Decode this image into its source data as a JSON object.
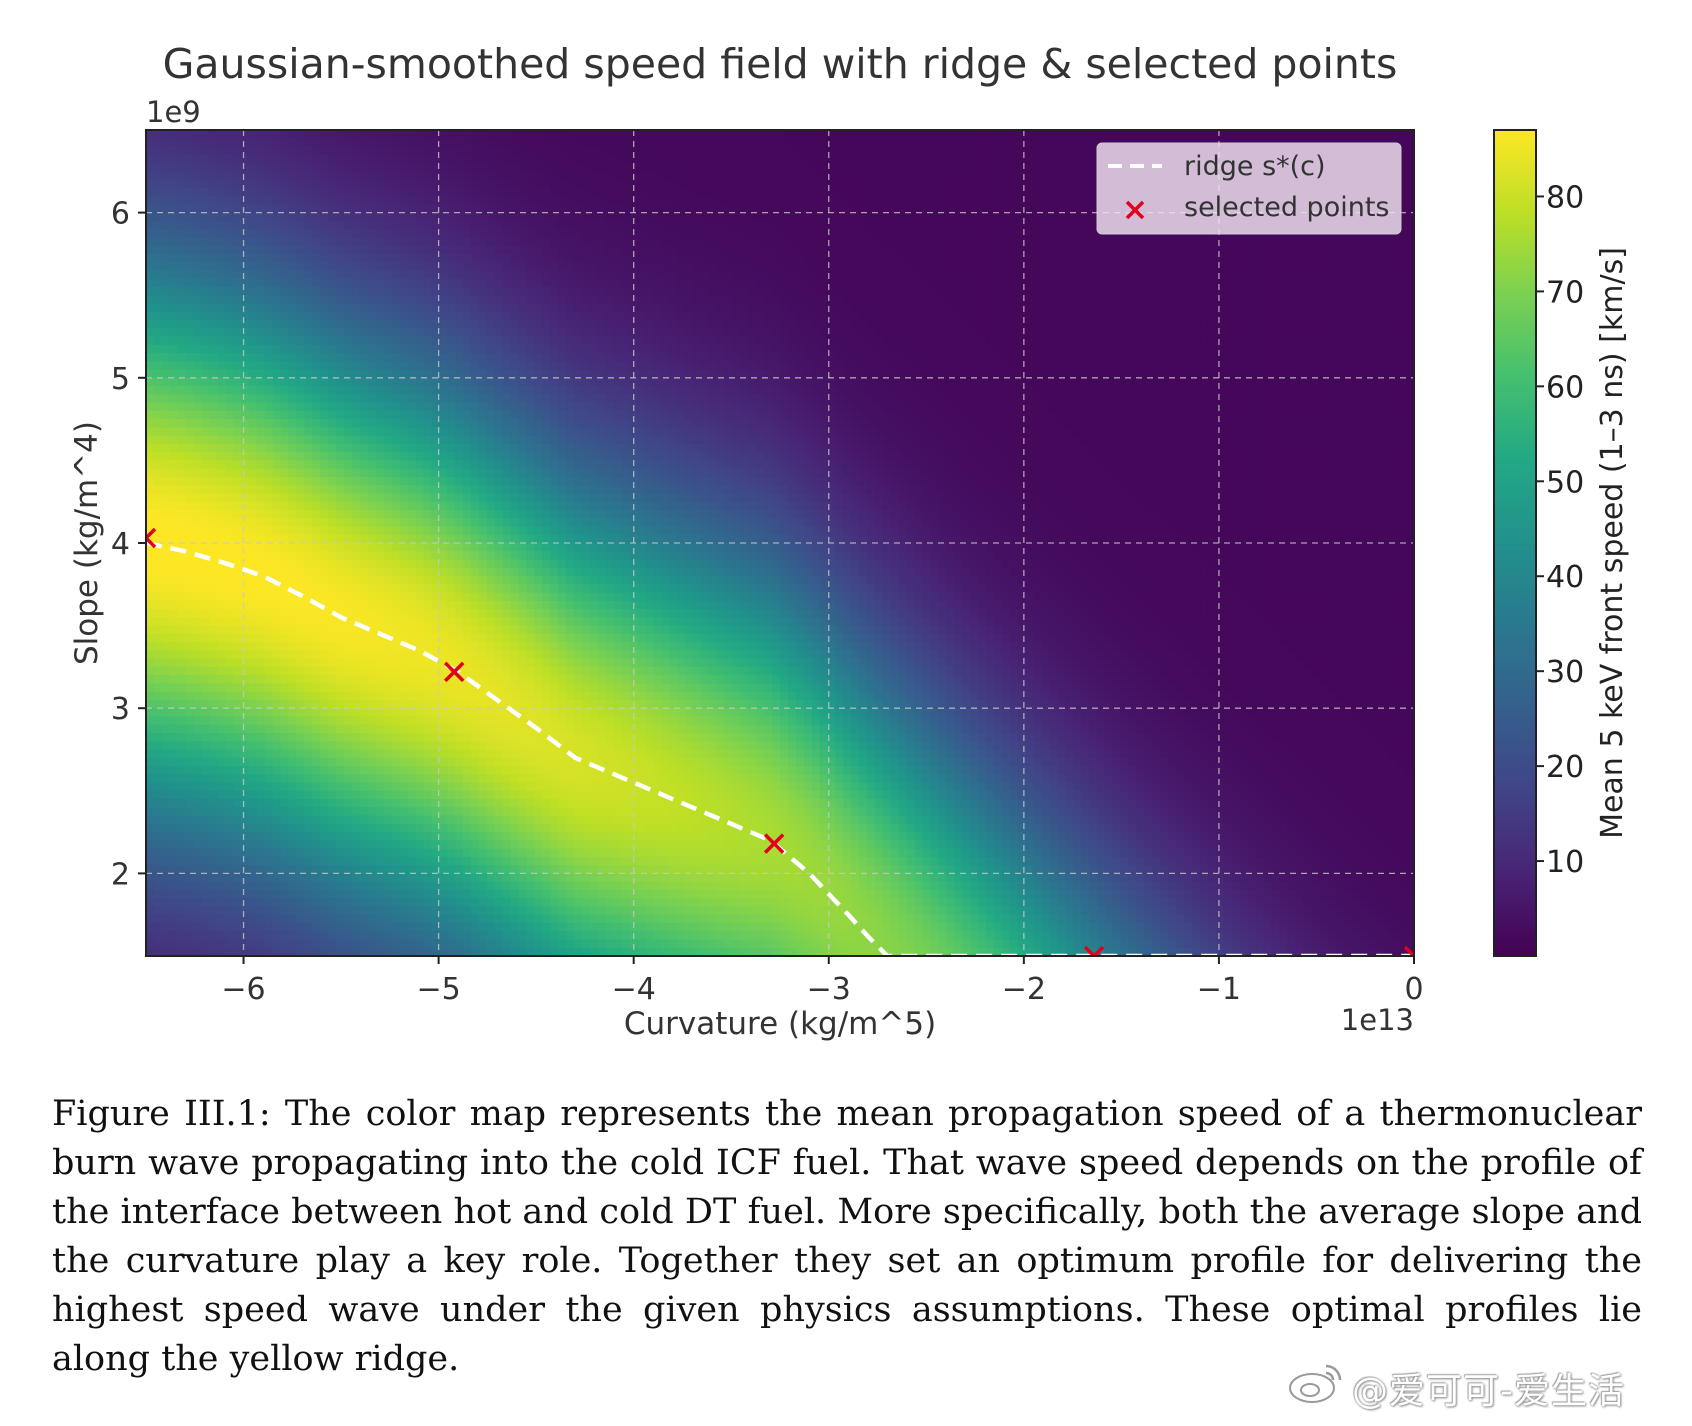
{
  "chart_data": {
    "type": "heatmap",
    "title": "Gaussian-smoothed speed field with ridge & selected points",
    "xlabel": "Curvature (kg/m^5)",
    "ylabel": "Slope (kg/m^4)",
    "x_offset_label": "1e13",
    "y_offset_label": "1e9",
    "xlim": [
      -6.5,
      0
    ],
    "ylim": [
      1.5,
      6.5
    ],
    "x_ticks": [
      -6,
      -5,
      -4,
      -3,
      -2,
      -1,
      0
    ],
    "x_tick_labels": [
      "−6",
      "−5",
      "−4",
      "−3",
      "−2",
      "−1",
      "0"
    ],
    "y_ticks": [
      2,
      3,
      4,
      5,
      6
    ],
    "y_tick_labels": [
      "2",
      "3",
      "4",
      "5",
      "6"
    ],
    "grid": true,
    "colormap": "viridis",
    "colorbar": {
      "label": "Mean 5 keV front speed (1–3 ns) [km/s]",
      "range": [
        0,
        87
      ],
      "ticks": [
        10,
        20,
        30,
        40,
        50,
        60,
        70,
        80
      ],
      "tick_labels": [
        "10",
        "20",
        "30",
        "40",
        "50",
        "60",
        "70",
        "80"
      ]
    },
    "legend": {
      "placement": "top-right",
      "entries": [
        "ridge s*(c)",
        "selected points"
      ]
    },
    "series": [
      {
        "name": "ridge s*(c)",
        "style": "dashed-line",
        "color": "#ffffff",
        "x": [
          -6.5,
          -6.3,
          -6.1,
          -5.9,
          -5.7,
          -5.5,
          -5.3,
          -5.1,
          -4.9,
          -4.7,
          -4.5,
          -4.3,
          -4.1,
          -3.9,
          -3.7,
          -3.5,
          -3.3,
          -3.1,
          -2.9,
          -2.8,
          -2.7,
          -2.5,
          -2.0,
          -1.5,
          -1.0,
          -0.5,
          0.0
        ],
        "y": [
          4.0,
          3.95,
          3.88,
          3.8,
          3.68,
          3.55,
          3.45,
          3.35,
          3.22,
          3.05,
          2.88,
          2.7,
          2.6,
          2.5,
          2.4,
          2.3,
          2.2,
          2.0,
          1.75,
          1.62,
          1.5,
          1.5,
          1.5,
          1.5,
          1.5,
          1.5,
          1.5
        ]
      },
      {
        "name": "selected points",
        "style": "x-marker",
        "color": "#e3001b",
        "x": [
          -6.5,
          -4.92,
          -3.28,
          -1.64,
          0.0
        ],
        "y": [
          4.03,
          3.22,
          2.18,
          1.5,
          1.5
        ]
      }
    ]
  },
  "caption": "Figure III.1: The color map represents the mean propagation speed of a thermonuclear burn wave propagating into the cold ICF fuel.  That wave speed depends on the profile of the interface between hot and cold DT fuel.  More specifically, both the average slope and the curvature play a key role.  Together they set an optimum profile for delivering the highest speed wave under the given physics assumptions.  These optimal profiles lie along the yellow ridge.",
  "watermark": "@爱可可-爱生活"
}
